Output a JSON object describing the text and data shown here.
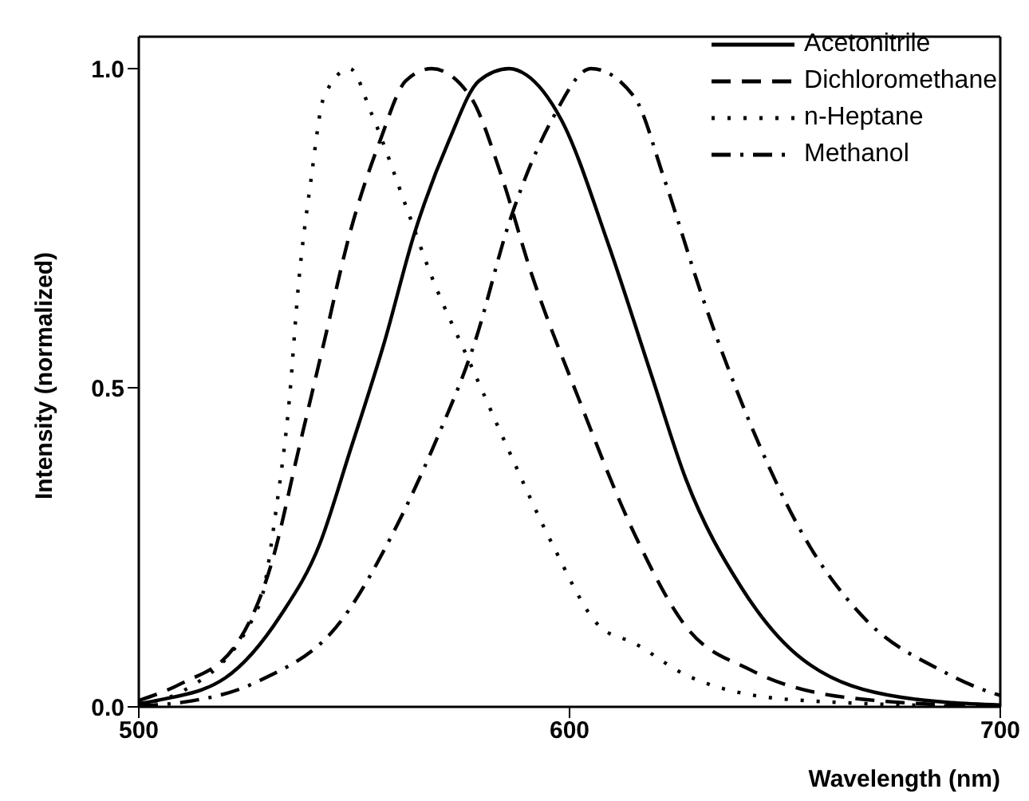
{
  "chart_data": {
    "type": "line",
    "xlabel": "Wavelength (nm)",
    "ylabel": "Intensity (normalized)",
    "xlim": [
      500,
      700
    ],
    "xticks": [
      500,
      600,
      700
    ],
    "ylim": [
      0,
      1.05
    ],
    "yticks": [
      {
        "value": 0,
        "label": "0.0"
      },
      0.5,
      {
        "value": 1,
        "label": "1.0"
      }
    ],
    "grid": false,
    "legend": "top right",
    "marker": "none",
    "series": [
      {
        "name": "Acetonitrile",
        "color": "#000000",
        "line_style": "solid",
        "x": [
          500,
          505,
          520,
          533,
          542,
          549,
          557,
          564,
          572,
          579,
          586,
          590,
          598,
          609,
          619,
          627,
          640,
          654,
          677,
          700
        ],
        "values": [
          0.005,
          0.011,
          0.045,
          0.144,
          0.255,
          0.4,
          0.571,
          0.742,
          0.887,
          0.981,
          1.0,
          0.99,
          0.921,
          0.725,
          0.52,
          0.357,
          0.186,
          0.075,
          0.015,
          0.003
        ]
      },
      {
        "name": "Dichloromethane",
        "color": "#000000",
        "line_style": "dashed",
        "x": [
          500,
          510,
          522,
          531,
          537,
          543,
          549,
          556,
          562,
          568,
          577,
          584,
          591,
          602,
          615,
          627,
          642,
          664,
          700
        ],
        "values": [
          0.01,
          0.037,
          0.092,
          0.229,
          0.4,
          0.571,
          0.742,
          0.887,
          0.981,
          1.0,
          0.956,
          0.836,
          0.682,
          0.485,
          0.272,
          0.126,
          0.058,
          0.015,
          0.0
        ]
      },
      {
        "name": "n-Heptane",
        "color": "#000000",
        "line_style": "dotted",
        "x": [
          500,
          510,
          528,
          532,
          535,
          537,
          540,
          543,
          549,
          554,
          562,
          568,
          577,
          586,
          596,
          607,
          615,
          627,
          652,
          700
        ],
        "values": [
          0.005,
          0.024,
          0.16,
          0.315,
          0.485,
          0.656,
          0.827,
          0.956,
          1.0,
          0.93,
          0.785,
          0.674,
          0.537,
          0.4,
          0.255,
          0.126,
          0.1,
          0.05,
          0.011,
          0.0
        ]
      },
      {
        "name": "Methanol",
        "color": "#000000",
        "line_style": "dashdot",
        "x": [
          500,
          510,
          528,
          547,
          559,
          569,
          578,
          586,
          596,
          605,
          615,
          622,
          631,
          642,
          654,
          669,
          686,
          699,
          700
        ],
        "values": [
          0.002,
          0.007,
          0.041,
          0.135,
          0.272,
          0.417,
          0.571,
          0.759,
          0.921,
          1.0,
          0.956,
          0.827,
          0.639,
          0.443,
          0.272,
          0.135,
          0.058,
          0.02,
          0.018
        ]
      }
    ]
  }
}
